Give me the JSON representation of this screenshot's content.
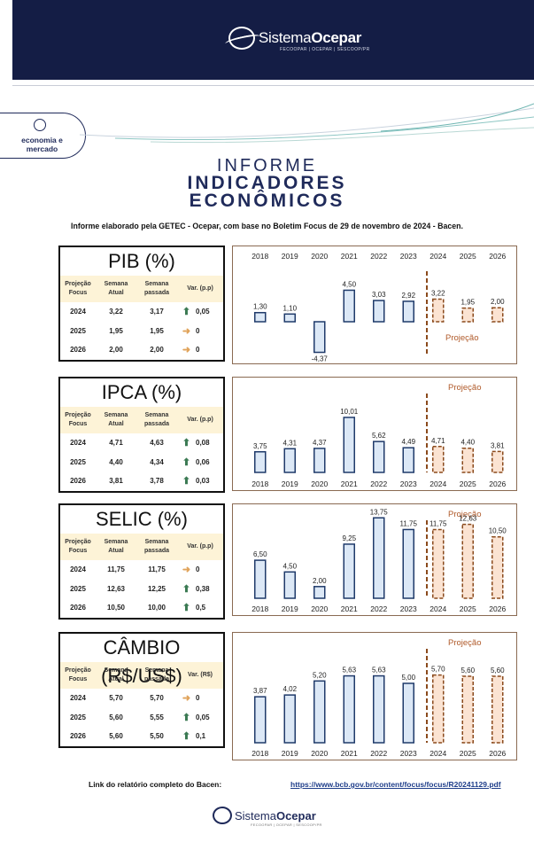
{
  "header": {
    "brand_regular": "Sistema",
    "brand_bold": "Ocepar",
    "brand_sub": "FECOOPAR | OCEPAR | SESCOOP/PR"
  },
  "badge": {
    "line1": "economia e",
    "line2": "mercado"
  },
  "title": {
    "line1": "INFORME",
    "line2": "INDICADORES",
    "line3": "ECONÔMICOS"
  },
  "subtitle": "Informe elaborado pela GETEC - Ocepar, com base no Boletim Focus de 29 de novembro de 2024 - Bacen.",
  "tables": [
    {
      "title": "PIB (%)",
      "var_label": "Var. (p.p)",
      "rows": [
        {
          "year": "2024",
          "atual": "3,22",
          "passada": "3,17",
          "dir": "up",
          "var": "0,05"
        },
        {
          "year": "2025",
          "atual": "1,95",
          "passada": "1,95",
          "dir": "right",
          "var": "0"
        },
        {
          "year": "2026",
          "atual": "2,00",
          "passada": "2,00",
          "dir": "right",
          "var": "0"
        }
      ]
    },
    {
      "title": "IPCA (%)",
      "var_label": "Var. (p.p)",
      "rows": [
        {
          "year": "2024",
          "atual": "4,71",
          "passada": "4,63",
          "dir": "up",
          "var": "0,08"
        },
        {
          "year": "2025",
          "atual": "4,40",
          "passada": "4,34",
          "dir": "up",
          "var": "0,06"
        },
        {
          "year": "2026",
          "atual": "3,81",
          "passada": "3,78",
          "dir": "up",
          "var": "0,03"
        }
      ]
    },
    {
      "title": "SELIC (%)",
      "var_label": "Var. (p.p)",
      "rows": [
        {
          "year": "2024",
          "atual": "11,75",
          "passada": "11,75",
          "dir": "right",
          "var": "0"
        },
        {
          "year": "2025",
          "atual": "12,63",
          "passada": "12,25",
          "dir": "up",
          "var": "0,38"
        },
        {
          "year": "2026",
          "atual": "10,50",
          "passada": "10,00",
          "dir": "up",
          "var": "0,5"
        }
      ]
    },
    {
      "title": "CÂMBIO (R$/US$)",
      "var_label": "Var. (R$)",
      "rows": [
        {
          "year": "2024",
          "atual": "5,70",
          "passada": "5,70",
          "dir": "right",
          "var": "0"
        },
        {
          "year": "2025",
          "atual": "5,60",
          "passada": "5,55",
          "dir": "up",
          "var": "0,05"
        },
        {
          "year": "2026",
          "atual": "5,60",
          "passada": "5,50",
          "dir": "up",
          "var": "0,1"
        }
      ]
    }
  ],
  "table_headers": {
    "h1a": "Projeção",
    "h1b": "Focus",
    "h2a": "Semana",
    "h2b": "Atual",
    "h3a": "Semana",
    "h3b": "passada"
  },
  "projection_label": "Projeção",
  "chart_data": [
    {
      "type": "bar",
      "categories": [
        "2018",
        "2019",
        "2020",
        "2021",
        "2022",
        "2023",
        "2024",
        "2025",
        "2026"
      ],
      "values": [
        1.3,
        1.1,
        -4.37,
        4.5,
        3.03,
        2.92,
        3.22,
        1.95,
        2.0
      ],
      "labels": [
        "1,30",
        "1,10",
        "-4,37",
        "4,50",
        "3,03",
        "2,92",
        "3,22",
        "1,95",
        "2,00"
      ],
      "projection_from": "2024",
      "xaxis_position": "top",
      "projection_label_position": "bottom-right"
    },
    {
      "type": "bar",
      "categories": [
        "2018",
        "2019",
        "2020",
        "2021",
        "2022",
        "2023",
        "2024",
        "2025",
        "2026"
      ],
      "values": [
        3.75,
        4.31,
        4.37,
        10.01,
        5.62,
        4.49,
        4.71,
        4.4,
        3.81
      ],
      "labels": [
        "3,75",
        "4,31",
        "4,37",
        "10,01",
        "5,62",
        "4,49",
        "4,71",
        "4,40",
        "3,81"
      ],
      "projection_from": "2024",
      "xaxis_position": "bottom",
      "projection_label_position": "top-right"
    },
    {
      "type": "bar",
      "categories": [
        "2018",
        "2019",
        "2020",
        "2021",
        "2022",
        "2023",
        "2024",
        "2025",
        "2026"
      ],
      "values": [
        6.5,
        4.5,
        2.0,
        9.25,
        13.75,
        11.75,
        11.75,
        12.63,
        10.5
      ],
      "labels": [
        "6,50",
        "4,50",
        "2,00",
        "9,25",
        "13,75",
        "11,75",
        "11,75",
        "12,63",
        "10,50"
      ],
      "projection_from": "2024",
      "xaxis_position": "bottom",
      "projection_label_position": "top-right"
    },
    {
      "type": "bar",
      "categories": [
        "2018",
        "2019",
        "2020",
        "2021",
        "2022",
        "2023",
        "2024",
        "2025",
        "2026"
      ],
      "values": [
        3.87,
        4.02,
        5.2,
        5.63,
        5.63,
        5.0,
        5.7,
        5.6,
        5.6
      ],
      "labels": [
        "3,87",
        "4,02",
        "5,20",
        "5,63",
        "5,63",
        "5,00",
        "5,70",
        "5,60",
        "5,60"
      ],
      "projection_from": "2024",
      "xaxis_position": "bottom",
      "projection_label_position": "top-right"
    }
  ],
  "colors": {
    "navy": "#141d45",
    "bar_fill": "#dce8f6",
    "bar_stroke": "#1f3a6a",
    "proj_fill": "#fbe3d2",
    "proj_stroke": "#8b4a1c",
    "table_head": "#fdf3d7",
    "arrow_up": "#3b7a53",
    "arrow_right": "#e0a35a"
  },
  "footer": {
    "label": "Link do relatório completo do Bacen:",
    "link": "https://www.bcb.gov.br/content/focus/focus/R20241129.pdf",
    "brand_regular": "Sistema",
    "brand_bold": "Ocepar",
    "brand_sub": "FECOOPAR | OCEPAR | SESCOOP/PR"
  }
}
